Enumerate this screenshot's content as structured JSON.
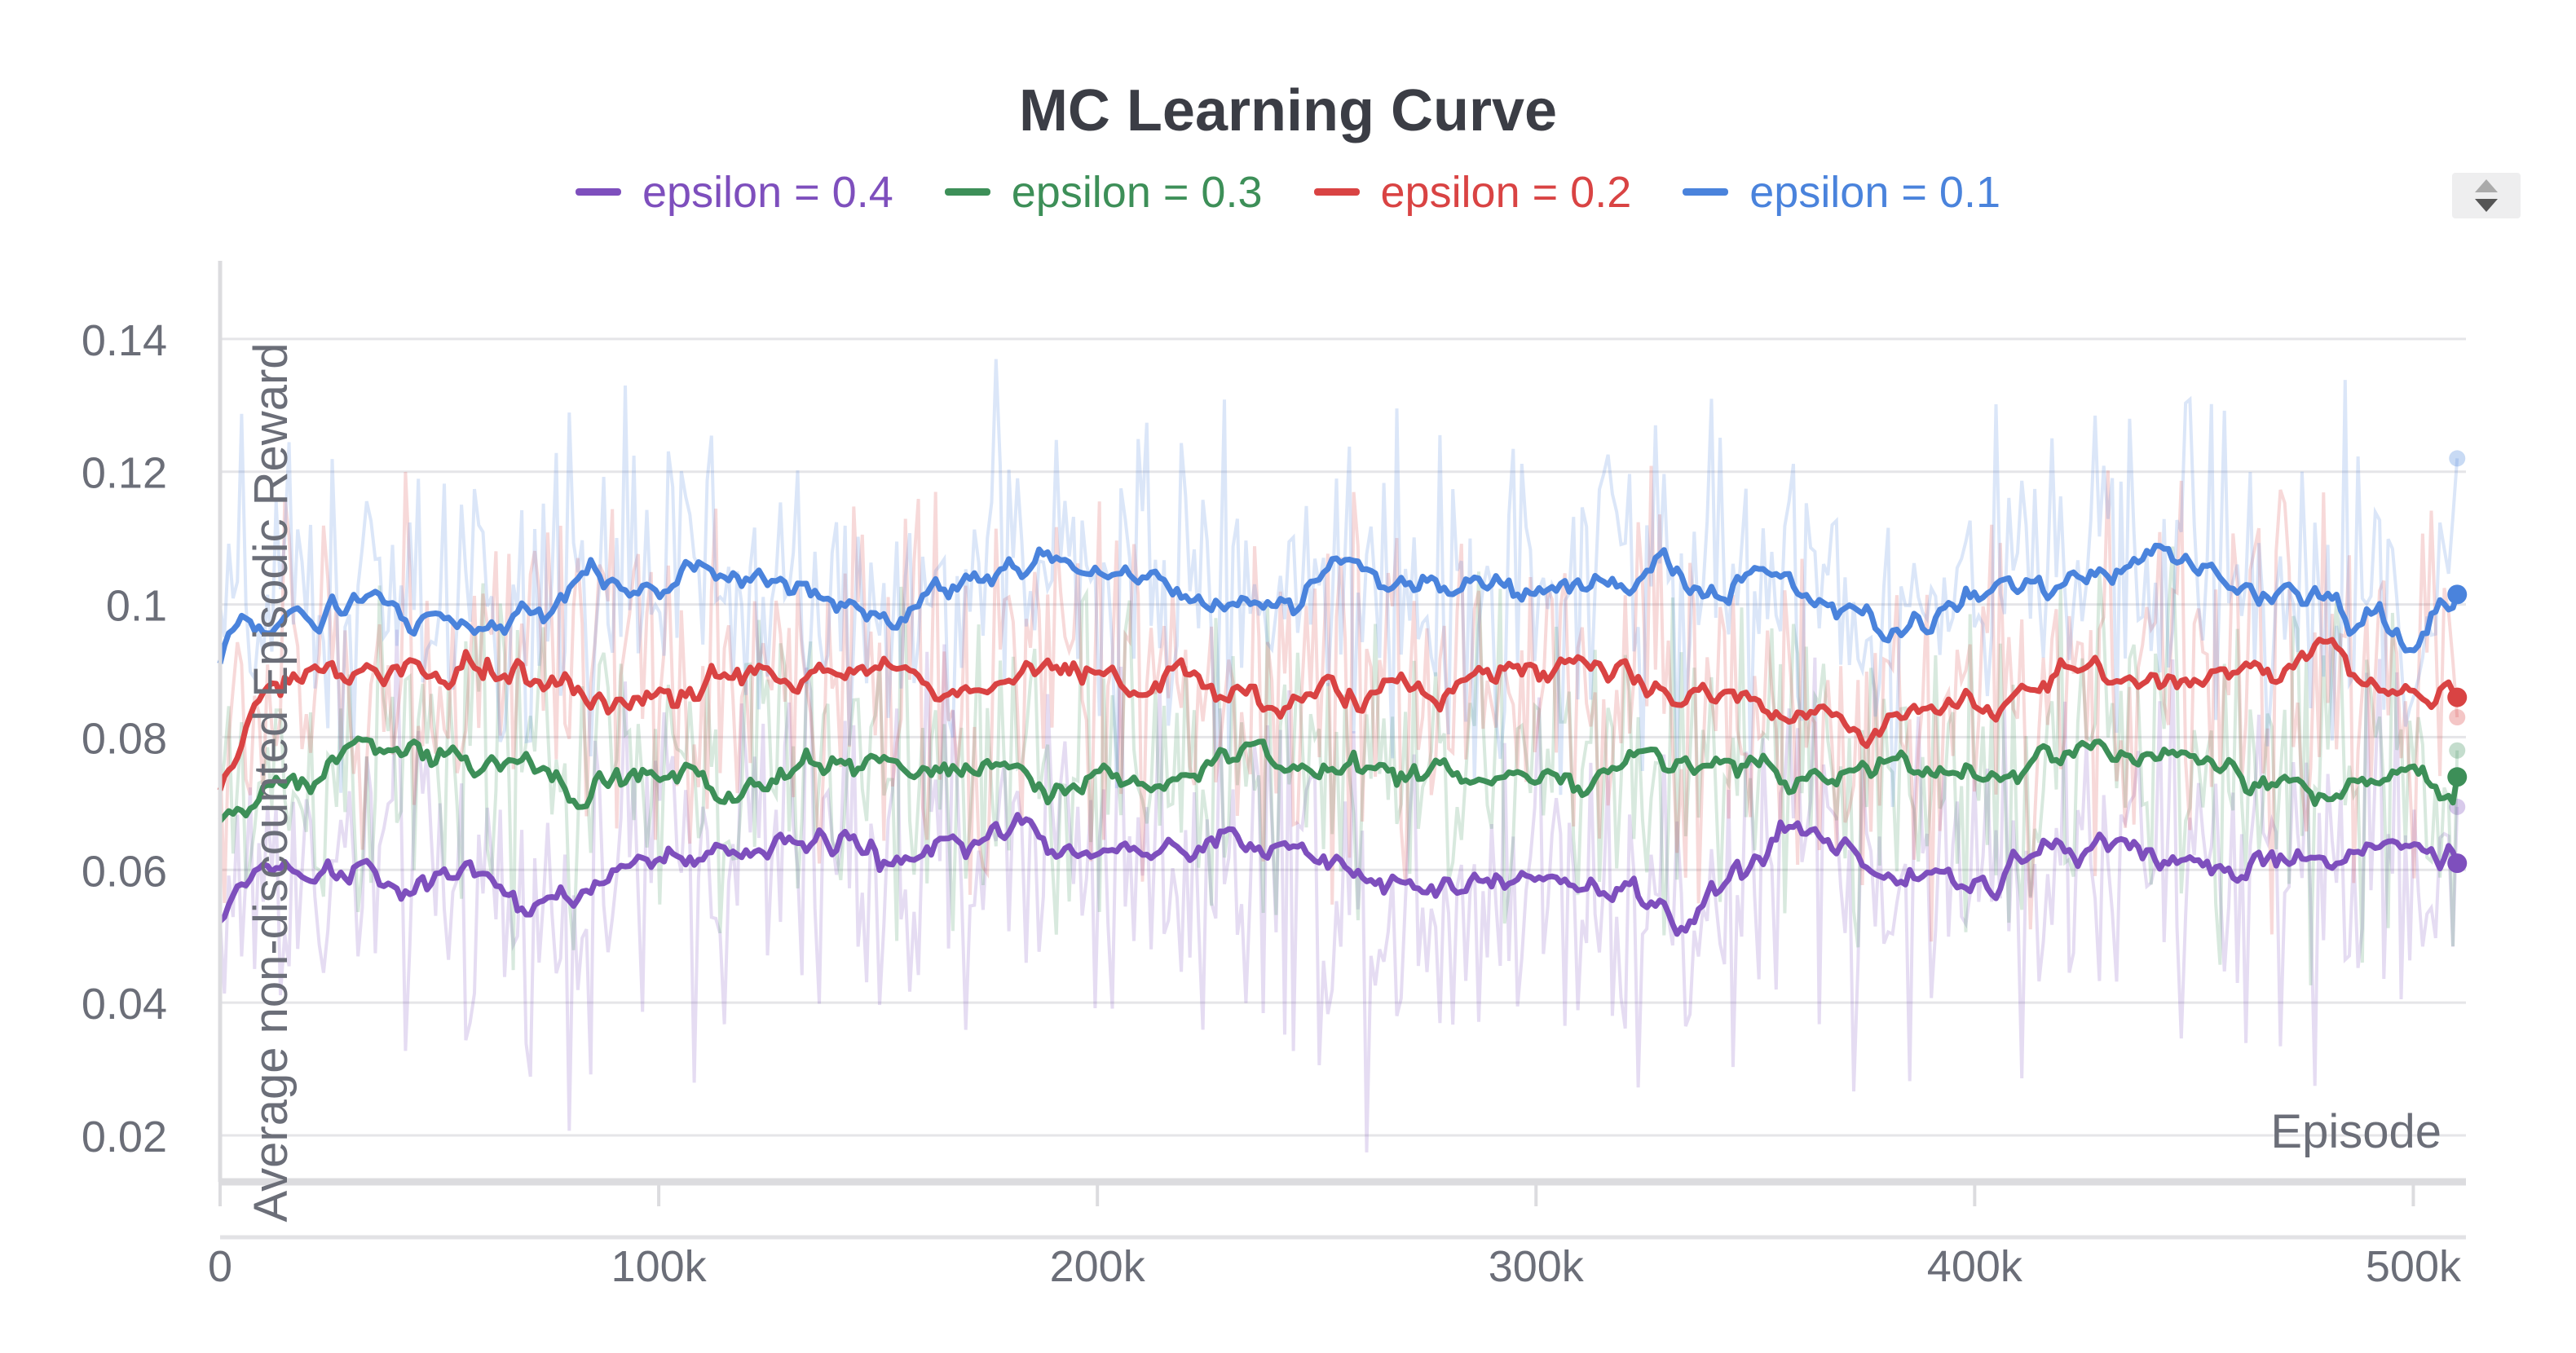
{
  "chart_data": {
    "type": "line",
    "title": "MC Learning Curve",
    "xlabel": "Episode",
    "ylabel": "Average non-discounted Episodic Reward",
    "xlim": [
      0,
      512000
    ],
    "ylim": [
      0.013,
      0.153
    ],
    "x_ticks": [
      0,
      100000,
      200000,
      300000,
      400000,
      500000
    ],
    "x_tick_labels": [
      "0",
      "100k",
      "200k",
      "300k",
      "400k",
      "500k"
    ],
    "y_ticks": [
      0.02,
      0.04,
      0.06,
      0.08,
      0.1,
      0.12,
      0.14
    ],
    "y_tick_labels": [
      "0.02",
      "0.04",
      "0.06",
      "0.08",
      "0.1",
      "0.12",
      "0.14"
    ],
    "grid": true,
    "legend_position": "top-center",
    "series": [
      {
        "name": "epsilon = 0.4",
        "color": "#7e4fbd",
        "smoothed_mean": 0.061,
        "raw_std": 0.014,
        "final_value": 0.061,
        "final_raw": 0.0695,
        "x": [
          0,
          10000,
          20000,
          40000,
          60000,
          70000,
          85000,
          100000,
          130000,
          160000,
          185000,
          210000,
          240000,
          260000,
          280000,
          300000,
          320000,
          335000,
          360000,
          380000,
          400000,
          430000,
          460000,
          490000,
          510000
        ],
        "y": [
          0.052,
          0.061,
          0.059,
          0.06,
          0.057,
          0.052,
          0.058,
          0.063,
          0.064,
          0.06,
          0.067,
          0.062,
          0.063,
          0.056,
          0.057,
          0.06,
          0.059,
          0.052,
          0.066,
          0.057,
          0.061,
          0.063,
          0.059,
          0.063,
          0.061
        ]
      },
      {
        "name": "epsilon = 0.3",
        "color": "#3d8f58",
        "smoothed_mean": 0.075,
        "raw_std": 0.013,
        "final_value": 0.074,
        "final_raw": 0.078,
        "x": [
          0,
          10000,
          20000,
          50000,
          100000,
          150000,
          200000,
          250000,
          300000,
          350000,
          400000,
          440000,
          470000,
          510000
        ],
        "y": [
          0.068,
          0.072,
          0.074,
          0.077,
          0.074,
          0.075,
          0.075,
          0.077,
          0.075,
          0.074,
          0.075,
          0.079,
          0.074,
          0.074
        ]
      },
      {
        "name": "epsilon = 0.2",
        "color": "#d94343",
        "smoothed_mean": 0.088,
        "raw_std": 0.014,
        "final_value": 0.086,
        "final_raw": 0.083,
        "x": [
          0,
          10000,
          20000,
          60000,
          90000,
          120000,
          160000,
          200000,
          240000,
          300000,
          350000,
          380000,
          420000,
          450000,
          480000,
          510000
        ],
        "y": [
          0.072,
          0.086,
          0.089,
          0.091,
          0.085,
          0.09,
          0.086,
          0.091,
          0.086,
          0.09,
          0.085,
          0.083,
          0.09,
          0.091,
          0.089,
          0.086
        ]
      },
      {
        "name": "epsilon = 0.1",
        "color": "#4a83dc",
        "smoothed_mean": 0.101,
        "raw_std": 0.012,
        "final_value": 0.1015,
        "final_raw": 0.122,
        "x": [
          0,
          5000,
          30000,
          60000,
          80000,
          120000,
          150000,
          180000,
          200000,
          230000,
          260000,
          300000,
          350000,
          380000,
          420000,
          450000,
          500000,
          510000
        ],
        "y": [
          0.092,
          0.099,
          0.1,
          0.097,
          0.103,
          0.104,
          0.097,
          0.108,
          0.103,
          0.101,
          0.104,
          0.101,
          0.105,
          0.098,
          0.104,
          0.105,
          0.095,
          0.1015
        ]
      }
    ]
  },
  "ui": {
    "scroll_control_label": "legend-scroll"
  }
}
